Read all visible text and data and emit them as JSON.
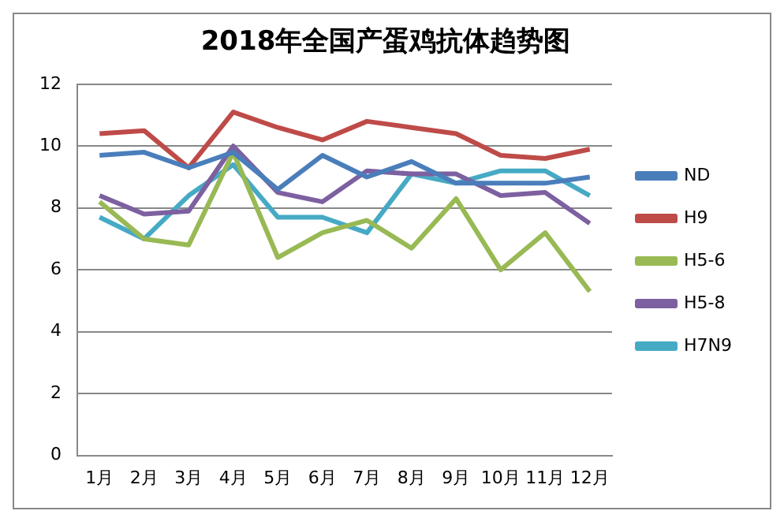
{
  "chart_data": {
    "type": "line",
    "title": "2018年全国产蛋鸡抗体趋势图",
    "categories": [
      "1月",
      "2月",
      "3月",
      "4月",
      "5月",
      "6月",
      "7月",
      "8月",
      "9月",
      "10月",
      "11月",
      "12月"
    ],
    "series": [
      {
        "name": "ND",
        "color": "#4a7ebb",
        "values": [
          9.7,
          9.8,
          9.3,
          9.8,
          8.6,
          9.7,
          9.0,
          9.5,
          8.8,
          8.8,
          8.8,
          9.0
        ]
      },
      {
        "name": "H9",
        "color": "#be4b48",
        "values": [
          10.4,
          10.5,
          9.3,
          11.1,
          10.6,
          10.2,
          10.8,
          10.6,
          10.4,
          9.7,
          9.6,
          9.9
        ]
      },
      {
        "name": "H5-6",
        "color": "#98b954",
        "values": [
          8.2,
          7.0,
          6.8,
          9.8,
          6.4,
          7.2,
          7.6,
          6.7,
          8.3,
          6.0,
          7.2,
          5.3
        ]
      },
      {
        "name": "H5-8",
        "color": "#7d60a0",
        "values": [
          8.4,
          7.8,
          7.9,
          10.0,
          8.5,
          8.2,
          9.2,
          9.1,
          9.1,
          8.4,
          8.5,
          7.5
        ]
      },
      {
        "name": "H7N9",
        "color": "#46aac5",
        "values": [
          7.7,
          7.0,
          8.4,
          9.4,
          7.7,
          7.7,
          7.2,
          9.1,
          8.8,
          9.2,
          9.2,
          8.4
        ]
      }
    ],
    "ylim": [
      0,
      12
    ],
    "yticks": [
      0,
      2,
      4,
      6,
      8,
      10,
      12
    ],
    "grid": "y",
    "legend": "right",
    "marker": "none",
    "line_style": "solid"
  }
}
